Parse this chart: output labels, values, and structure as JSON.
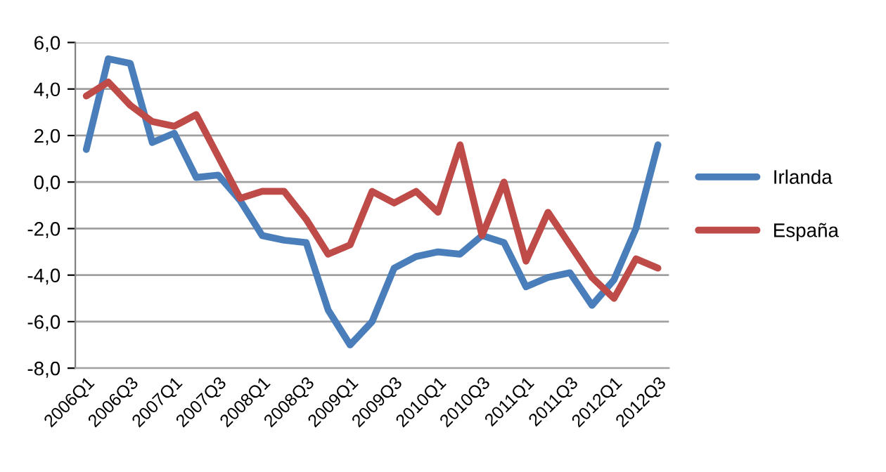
{
  "chart_data": {
    "type": "line",
    "categories": [
      "2006Q1",
      null,
      "2006Q3",
      null,
      "2007Q1",
      null,
      "2007Q3",
      null,
      "2008Q1",
      null,
      "2008Q3",
      null,
      "2009Q1",
      null,
      "2009Q3",
      null,
      "2010Q1",
      null,
      "2010Q3",
      null,
      "2011Q1",
      null,
      "2011Q3",
      null,
      "2012Q1",
      null,
      "2012Q3"
    ],
    "series": [
      {
        "name": "Irlanda",
        "color": "#4a7ebb",
        "values": [
          1.4,
          5.3,
          5.1,
          1.7,
          2.1,
          0.2,
          0.3,
          -0.8,
          -2.3,
          -2.5,
          -2.6,
          -5.5,
          -7.0,
          -6.0,
          -3.7,
          -3.2,
          -3.0,
          -3.1,
          -2.3,
          -2.6,
          -4.5,
          -4.1,
          -3.9,
          -5.3,
          -4.2,
          -2.0,
          1.6
        ]
      },
      {
        "name": "España",
        "color": "#be4b48",
        "values": [
          3.7,
          4.3,
          3.3,
          2.6,
          2.4,
          2.9,
          1.1,
          -0.7,
          -0.4,
          -0.4,
          -1.6,
          -3.1,
          -2.7,
          -0.4,
          -0.9,
          -0.4,
          -1.3,
          1.6,
          -2.3,
          0.0,
          -3.4,
          -1.3,
          -2.7,
          -4.1,
          -5.0,
          -3.3,
          -3.7
        ]
      }
    ],
    "ylim": [
      -8,
      6
    ],
    "yticks": [
      {
        "value": -8,
        "label": "-8,0"
      },
      {
        "value": -6,
        "label": "-6,0"
      },
      {
        "value": -4,
        "label": "-4,0"
      },
      {
        "value": -2,
        "label": "-2,0"
      },
      {
        "value": 0,
        "label": "0,0"
      },
      {
        "value": 2,
        "label": "2,0"
      },
      {
        "value": 4,
        "label": "4,0"
      },
      {
        "value": 6,
        "label": "6,0"
      }
    ],
    "grid": "y",
    "legend": "right",
    "marker": "none",
    "line_style": "solid"
  }
}
